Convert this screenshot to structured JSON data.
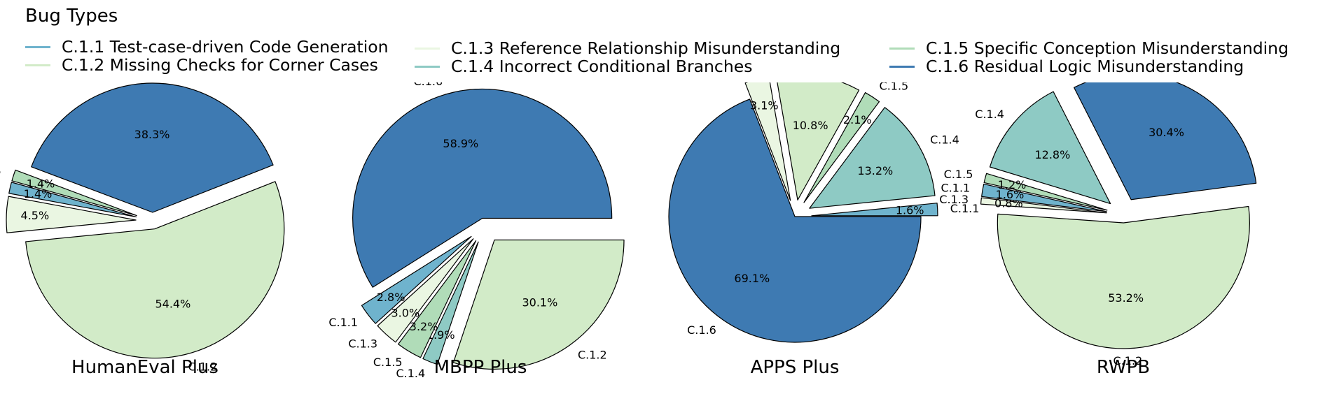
{
  "legend": {
    "title": "Bug Types",
    "items": [
      {
        "code": "C.1.1",
        "label": "C.1.1 Test-case-driven Code Generation",
        "color": "#6fb3cd"
      },
      {
        "code": "C.1.2",
        "label": "C.1.2 Missing Checks for Corner Cases",
        "color": "#d2ebc8"
      },
      {
        "code": "C.1.3",
        "label": "C.1.3 Reference Relationship Misunderstanding",
        "color": "#eaf6e2"
      },
      {
        "code": "C.1.4",
        "label": "C.1.4 Incorrect Conditional Branches",
        "color": "#8ecac4"
      },
      {
        "code": "C.1.5",
        "label": "C.1.5 Specific Conception Misunderstanding",
        "color": "#b0dcb8"
      },
      {
        "code": "C.1.6",
        "label": "C.1.6 Residual Logic Misunderstanding",
        "color": "#3e7ab2"
      }
    ]
  },
  "chart_data": [
    {
      "type": "pie",
      "title": "HumanEval Plus",
      "slices": [
        {
          "label": "C.1.2",
          "value": 54.4,
          "pct_label": "54.4%",
          "color": "#d2ebc8"
        },
        {
          "label": "C.1.3",
          "value": 4.5,
          "pct_label": "4.5%",
          "color": "#eaf6e2"
        },
        {
          "label": "C.1.1",
          "value": 1.4,
          "pct_label": "1.4%",
          "color": "#6fb3cd"
        },
        {
          "label": "C.1.5",
          "value": 1.4,
          "pct_label": "1.4%",
          "color": "#b0dcb8"
        },
        {
          "label": "C.1.6",
          "value": 38.3,
          "pct_label": "38.3%",
          "color": "#3e7ab2"
        }
      ]
    },
    {
      "type": "pie",
      "title": "MBPP Plus",
      "slices": [
        {
          "label": "C.1.2",
          "value": 30.1,
          "pct_label": "30.1%",
          "color": "#d2ebc8"
        },
        {
          "label": "C.1.4",
          "value": 1.9,
          "pct_label": "1.9%",
          "color": "#8ecac4"
        },
        {
          "label": "C.1.5",
          "value": 3.2,
          "pct_label": "3.2%",
          "color": "#b0dcb8"
        },
        {
          "label": "C.1.3",
          "value": 3.0,
          "pct_label": "3.0%",
          "color": "#eaf6e2"
        },
        {
          "label": "C.1.1",
          "value": 2.8,
          "pct_label": "2.8%",
          "color": "#6fb3cd"
        },
        {
          "label": "C.1.6",
          "value": 58.9,
          "pct_label": "58.9%",
          "color": "#3e7ab2"
        }
      ]
    },
    {
      "type": "pie",
      "title": "APPS Plus",
      "slices": [
        {
          "label": "C.1.6",
          "value": 69.1,
          "pct_label": "69.1%",
          "color": "#3e7ab2"
        },
        {
          "label": "C.1.3",
          "value": 3.1,
          "pct_label": "3.1%",
          "color": "#eaf6e2"
        },
        {
          "label": "C.1.2",
          "value": 10.8,
          "pct_label": "10.8%",
          "color": "#d2ebc8"
        },
        {
          "label": "C.1.5",
          "value": 2.1,
          "pct_label": "2.1%",
          "color": "#b0dcb8"
        },
        {
          "label": "C.1.4",
          "value": 13.2,
          "pct_label": "13.2%",
          "color": "#8ecac4"
        },
        {
          "label": "C.1.1",
          "value": 1.6,
          "pct_label": "1.6%",
          "color": "#6fb3cd"
        }
      ]
    },
    {
      "type": "pie",
      "title": "RWPB",
      "slices": [
        {
          "label": "C.1.2",
          "value": 53.2,
          "pct_label": "53.2%",
          "color": "#d2ebc8"
        },
        {
          "label": "C.1.3",
          "value": 0.8,
          "pct_label": "0.8%",
          "color": "#eaf6e2"
        },
        {
          "label": "C.1.1",
          "value": 1.6,
          "pct_label": "1.6%",
          "color": "#6fb3cd"
        },
        {
          "label": "C.1.5",
          "value": 1.2,
          "pct_label": "1.2%",
          "color": "#b0dcb8"
        },
        {
          "label": "C.1.4",
          "value": 12.8,
          "pct_label": "12.8%",
          "color": "#8ecac4"
        },
        {
          "label": "C.1.6",
          "value": 30.4,
          "pct_label": "30.4%",
          "color": "#3e7ab2"
        }
      ]
    }
  ]
}
